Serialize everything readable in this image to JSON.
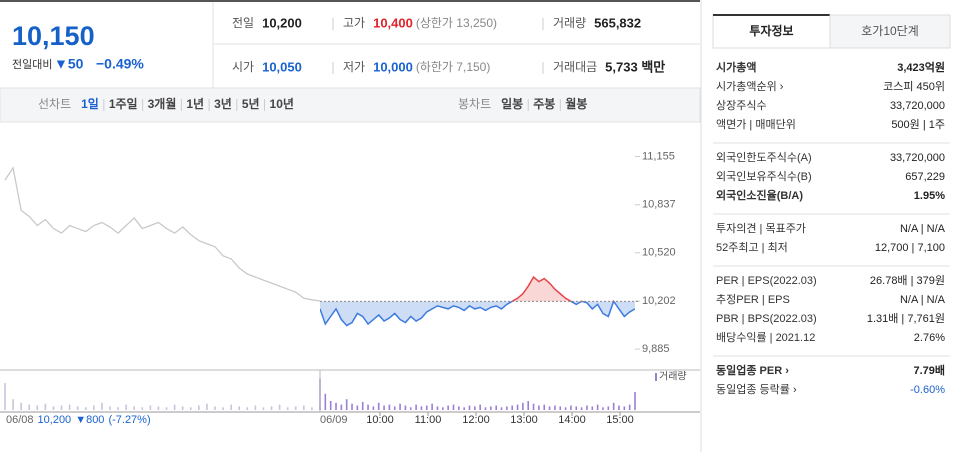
{
  "quote": {
    "price": "10,150",
    "change_label": "전일대비",
    "change": "▼50",
    "change_pct": "−0.49%"
  },
  "summary": [
    [
      {
        "label": "전일",
        "value": "10,200",
        "tone": "flat"
      },
      {
        "label": "고가",
        "value": "10,400",
        "note": "(상한가 13,250)",
        "tone": "up"
      },
      {
        "label": "거래량",
        "value": "565,832",
        "tone": "flat"
      }
    ],
    [
      {
        "label": "시가",
        "value": "10,050",
        "tone": "down"
      },
      {
        "label": "저가",
        "value": "10,000",
        "note": "(하한가 7,150)",
        "tone": "down"
      },
      {
        "label": "거래대금",
        "value": "5,733 백만",
        "tone": "flat"
      }
    ]
  ],
  "periods": {
    "line_label": "선차트",
    "line": [
      "1일",
      "1주일",
      "3개월",
      "1년",
      "3년",
      "5년",
      "10년"
    ],
    "candle_label": "봉차트",
    "candle": [
      "일봉",
      "주봉",
      "월봉"
    ]
  },
  "chart_data": {
    "type": "line",
    "ylim": [
      9780,
      11330
    ],
    "yticks": [
      {
        "value": 11155,
        "label": "11,155"
      },
      {
        "value": 10837,
        "label": "10,837"
      },
      {
        "value": 10520,
        "label": "10,520"
      },
      {
        "value": 10202,
        "label": "10,202"
      },
      {
        "value": 9885,
        "label": "9,885"
      }
    ],
    "baseline": 10200,
    "up_color": "#f07a7a",
    "down_color": "#5b8fe0",
    "vlim": [
      0,
      40
    ],
    "volume_label": "거래량",
    "series": [
      {
        "color": "#c9c9c9",
        "fill": false,
        "values": [
          11000,
          11080,
          10800,
          10760,
          10700,
          10740,
          10680,
          10650,
          10700,
          10680,
          10660,
          10700,
          10720,
          10690,
          10650,
          10700,
          10750,
          10680,
          10700,
          10720,
          10680,
          10650,
          10690,
          10640,
          10600,
          10580,
          10560,
          10500,
          10480,
          10420,
          10380,
          10360,
          10340,
          10320,
          10300,
          10280,
          10260,
          10220,
          10210,
          10202
        ],
        "volumes": [
          30,
          12,
          8,
          6,
          5,
          7,
          4,
          5,
          6,
          4,
          3,
          5,
          8,
          4,
          3,
          6,
          4,
          3,
          5,
          4,
          3,
          6,
          4,
          3,
          5,
          7,
          4,
          3,
          6,
          4,
          3,
          5,
          3,
          4,
          6,
          3,
          4,
          5,
          3,
          4
        ]
      },
      {
        "color": "#3d7be0",
        "fill": true,
        "values": [
          10150,
          10050,
          10100,
          10150,
          10080,
          10040,
          10060,
          10120,
          10100,
          10050,
          10080,
          10110,
          10070,
          10090,
          10120,
          10080,
          10060,
          10100,
          10070,
          10090,
          10130,
          10150,
          10170,
          10160,
          10150,
          10170,
          10160,
          10140,
          10170,
          10150,
          10160,
          10140,
          10160,
          10170,
          10150,
          10180,
          10200,
          10220,
          10250,
          10300,
          10360,
          10330,
          10350,
          10320,
          10280,
          10250,
          10220,
          10200,
          10180,
          10200,
          10190,
          10150,
          10180,
          10120,
          10100,
          10200,
          10150,
          10100,
          10130,
          10150
        ],
        "volumes": [
          35,
          18,
          10,
          8,
          6,
          12,
          7,
          5,
          9,
          6,
          4,
          8,
          5,
          6,
          4,
          7,
          5,
          3,
          6,
          4,
          5,
          7,
          4,
          3,
          5,
          6,
          4,
          3,
          5,
          4,
          6,
          3,
          4,
          5,
          3,
          4,
          5,
          6,
          8,
          10,
          7,
          5,
          6,
          4,
          5,
          4,
          3,
          5,
          4,
          3,
          5,
          4,
          6,
          3,
          4,
          8,
          5,
          4,
          6,
          20
        ]
      }
    ],
    "x_labels": {
      "prev_date": "06/08",
      "prev_close": "10,200",
      "prev_change": "▼800",
      "prev_pct": "(-7.27%)",
      "date": "06/09",
      "times": [
        "10:00",
        "11:00",
        "12:00",
        "13:00",
        "14:00",
        "15:00"
      ]
    }
  },
  "panel": {
    "tabs": [
      "투자정보",
      "호가10단계"
    ],
    "groups": [
      [
        {
          "label": "시가총액",
          "value": "3,423억원",
          "bold": true
        },
        {
          "label": "시가총액순위 ›",
          "value": "코스피 450위"
        },
        {
          "label": "상장주식수",
          "value": "33,720,000"
        },
        {
          "label": "액면가 | 매매단위",
          "value": "500원 | 1주"
        }
      ],
      [
        {
          "label": "외국인한도주식수(A)",
          "value": "33,720,000"
        },
        {
          "label": "외국인보유주식수(B)",
          "value": "657,229"
        },
        {
          "label": "외국인소진율(B/A)",
          "value": "1.95%",
          "bold": true
        }
      ],
      [
        {
          "label": "투자의견 | 목표주가",
          "value": "N/A | N/A"
        },
        {
          "label": "52주최고 | 최저",
          "value": "12,700 | 7,100"
        }
      ],
      [
        {
          "label": "PER | EPS(2022.03)",
          "value": "26.78배 | 379원"
        },
        {
          "label": "추정PER | EPS",
          "value": "N/A | N/A"
        },
        {
          "label": "PBR | BPS(2022.03)",
          "value": "1.31배 | 7,761원"
        },
        {
          "label": "배당수익률 | 2021.12",
          "value": "2.76%"
        }
      ],
      [
        {
          "label": "동일업종 PER ›",
          "value": "7.79배",
          "bold": true
        },
        {
          "label": "동일업종 등락률 ›",
          "value": "-0.60%",
          "tone": "down"
        }
      ]
    ]
  }
}
